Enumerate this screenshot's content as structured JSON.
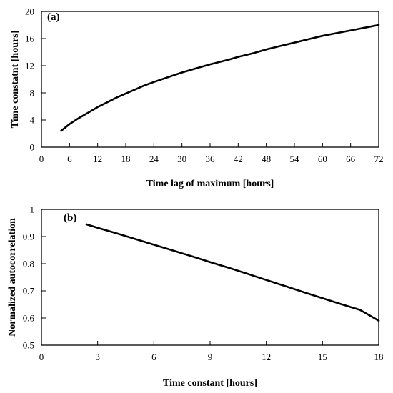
{
  "chart_data": [
    {
      "type": "line",
      "panel_label": "(a)",
      "xlabel": "Time lag of maximum [hours]",
      "ylabel": "Time constatnt [hours]",
      "xlim": [
        0,
        72
      ],
      "ylim": [
        0,
        20
      ],
      "xticks": [
        0,
        6,
        12,
        18,
        24,
        30,
        36,
        42,
        48,
        54,
        60,
        66,
        72
      ],
      "yticks": [
        0,
        4,
        8,
        12,
        16,
        20
      ],
      "grid": false,
      "series": [
        {
          "x": [
            4.2,
            6,
            8,
            10,
            12,
            14,
            16,
            18,
            20,
            22,
            24,
            27,
            30,
            33,
            36,
            40,
            42,
            45,
            48,
            51,
            54,
            57,
            60,
            63,
            66,
            69,
            72
          ],
          "y": [
            2.4,
            3.4,
            4.3,
            5.1,
            5.9,
            6.6,
            7.3,
            7.9,
            8.5,
            9.1,
            9.6,
            10.3,
            11.0,
            11.6,
            12.2,
            12.9,
            13.3,
            13.8,
            14.4,
            14.9,
            15.4,
            15.9,
            16.4,
            16.8,
            17.2,
            17.6,
            18.0
          ]
        }
      ]
    },
    {
      "type": "line",
      "panel_label": "(b)",
      "xlabel": "Time constant [hours]",
      "ylabel": "Normalized autocorrelation",
      "xlim": [
        0,
        18
      ],
      "ylim": [
        0.5,
        1
      ],
      "xticks": [
        0,
        3,
        6,
        9,
        12,
        15,
        18
      ],
      "yticks": [
        0.5,
        0.6,
        0.7,
        0.8,
        0.9,
        1
      ],
      "grid": false,
      "series": [
        {
          "x": [
            2.4,
            3,
            4,
            5,
            6,
            7,
            8,
            9,
            10,
            11,
            12,
            13,
            14,
            15,
            16,
            17,
            18
          ],
          "y": [
            0.945,
            0.932,
            0.912,
            0.891,
            0.87,
            0.849,
            0.828,
            0.806,
            0.785,
            0.763,
            0.74,
            0.718,
            0.695,
            0.673,
            0.651,
            0.63,
            0.59
          ]
        }
      ]
    }
  ]
}
